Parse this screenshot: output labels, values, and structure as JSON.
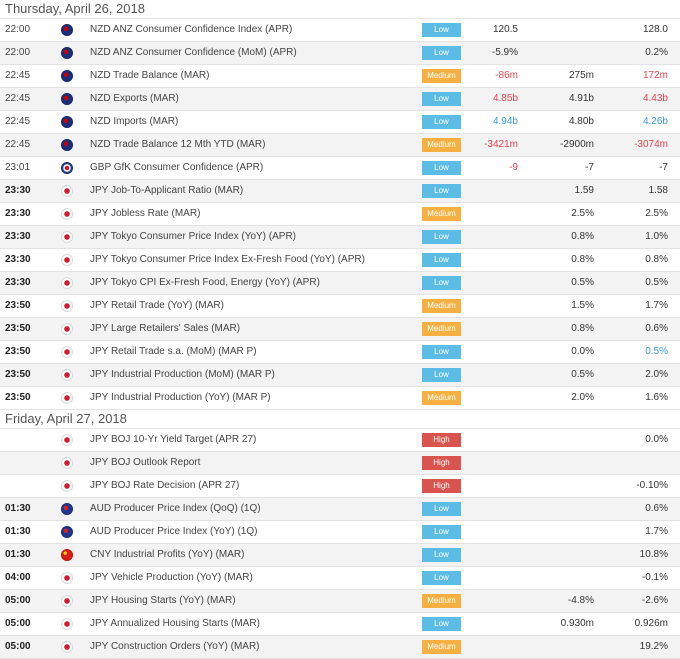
{
  "days": [
    {
      "label": "Thursday, April 26, 2018",
      "events": [
        {
          "time": "22:00",
          "flag": "nz",
          "event": "NZD ANZ Consumer Confidence Index (APR)",
          "importance": "Low",
          "actual": "120.5",
          "forecast": "",
          "previous": "128.0",
          "actual_color": "",
          "previous_color": ""
        },
        {
          "time": "22:00",
          "flag": "nz",
          "event": "NZD ANZ Consumer Confidence (MoM) (APR)",
          "importance": "Low",
          "actual": "-5.9%",
          "forecast": "",
          "previous": "0.2%",
          "actual_color": "",
          "previous_color": ""
        },
        {
          "time": "22:45",
          "flag": "nz",
          "event": "NZD Trade Balance (MAR)",
          "importance": "Medium",
          "actual": "-86m",
          "forecast": "275m",
          "previous": "172m",
          "actual_color": "red",
          "previous_color": "red"
        },
        {
          "time": "22:45",
          "flag": "nz",
          "event": "NZD Exports (MAR)",
          "importance": "Low",
          "actual": "4.85b",
          "forecast": "4.91b",
          "previous": "4.43b",
          "actual_color": "red",
          "previous_color": "red"
        },
        {
          "time": "22:45",
          "flag": "nz",
          "event": "NZD Imports (MAR)",
          "importance": "Low",
          "actual": "4.94b",
          "forecast": "4.80b",
          "previous": "4.26b",
          "actual_color": "blue",
          "previous_color": "blue"
        },
        {
          "time": "22:45",
          "flag": "nz",
          "event": "NZD Trade Balance 12 Mth YTD (MAR)",
          "importance": "Medium",
          "actual": "-3421m",
          "forecast": "-2900m",
          "previous": "-3074m",
          "actual_color": "red",
          "previous_color": "red"
        },
        {
          "time": "23:01",
          "flag": "gb",
          "event": "GBP GfK Consumer Confidence (APR)",
          "importance": "Low",
          "actual": "-9",
          "forecast": "-7",
          "previous": "-7",
          "actual_color": "red",
          "previous_color": ""
        },
        {
          "time": "23:30",
          "flag": "jp",
          "event": "JPY Job-To-Applicant Ratio (MAR)",
          "importance": "Low",
          "actual": "",
          "forecast": "1.59",
          "previous": "1.58",
          "actual_color": "",
          "previous_color": ""
        },
        {
          "time": "23:30",
          "flag": "jp",
          "event": "JPY Jobless Rate (MAR)",
          "importance": "Medium",
          "actual": "",
          "forecast": "2.5%",
          "previous": "2.5%",
          "actual_color": "",
          "previous_color": ""
        },
        {
          "time": "23:30",
          "flag": "jp",
          "event": "JPY Tokyo Consumer Price Index (YoY) (APR)",
          "importance": "Low",
          "actual": "",
          "forecast": "0.8%",
          "previous": "1.0%",
          "actual_color": "",
          "previous_color": ""
        },
        {
          "time": "23:30",
          "flag": "jp",
          "event": "JPY Tokyo Consumer Price Index Ex-Fresh Food (YoY) (APR)",
          "importance": "Low",
          "actual": "",
          "forecast": "0.8%",
          "previous": "0.8%",
          "actual_color": "",
          "previous_color": ""
        },
        {
          "time": "23:30",
          "flag": "jp",
          "event": "JPY Tokyo CPI Ex-Fresh Food, Energy (YoY) (APR)",
          "importance": "Low",
          "actual": "",
          "forecast": "0.5%",
          "previous": "0.5%",
          "actual_color": "",
          "previous_color": ""
        },
        {
          "time": "23:50",
          "flag": "jp",
          "event": "JPY Retail Trade (YoY) (MAR)",
          "importance": "Medium",
          "actual": "",
          "forecast": "1.5%",
          "previous": "1.7%",
          "actual_color": "",
          "previous_color": ""
        },
        {
          "time": "23:50",
          "flag": "jp",
          "event": "JPY Large Retailers' Sales (MAR)",
          "importance": "Medium",
          "actual": "",
          "forecast": "0.8%",
          "previous": "0.6%",
          "actual_color": "",
          "previous_color": ""
        },
        {
          "time": "23:50",
          "flag": "jp",
          "event": "JPY Retail Trade s.a. (MoM) (MAR P)",
          "importance": "Low",
          "actual": "",
          "forecast": "0.0%",
          "previous": "0.5%",
          "actual_color": "",
          "previous_color": "blue"
        },
        {
          "time": "23:50",
          "flag": "jp",
          "event": "JPY Industrial Production (MoM) (MAR P)",
          "importance": "Low",
          "actual": "",
          "forecast": "0.5%",
          "previous": "2.0%",
          "actual_color": "",
          "previous_color": ""
        },
        {
          "time": "23:50",
          "flag": "jp",
          "event": "JPY Industrial Production (YoY) (MAR P)",
          "importance": "Medium",
          "actual": "",
          "forecast": "2.0%",
          "previous": "1.6%",
          "actual_color": "",
          "previous_color": ""
        }
      ]
    },
    {
      "label": "Friday, April 27, 2018",
      "events": [
        {
          "time": "",
          "flag": "jp",
          "event": "JPY BOJ 10-Yr Yield Target (APR 27)",
          "importance": "High",
          "actual": "",
          "forecast": "",
          "previous": "0.0%",
          "actual_color": "",
          "previous_color": ""
        },
        {
          "time": "",
          "flag": "jp",
          "event": "JPY BOJ Outlook Report",
          "importance": "High",
          "actual": "",
          "forecast": "",
          "previous": "",
          "actual_color": "",
          "previous_color": ""
        },
        {
          "time": "",
          "flag": "jp",
          "event": "JPY BOJ Rate Decision (APR 27)",
          "importance": "High",
          "actual": "",
          "forecast": "",
          "previous": "-0.10%",
          "actual_color": "",
          "previous_color": ""
        },
        {
          "time": "01:30",
          "flag": "au",
          "event": "AUD Producer Price Index (QoQ) (1Q)",
          "importance": "Low",
          "actual": "",
          "forecast": "",
          "previous": "0.6%",
          "actual_color": "",
          "previous_color": ""
        },
        {
          "time": "01:30",
          "flag": "au",
          "event": "AUD Producer Price Index (YoY) (1Q)",
          "importance": "Low",
          "actual": "",
          "forecast": "",
          "previous": "1.7%",
          "actual_color": "",
          "previous_color": ""
        },
        {
          "time": "01:30",
          "flag": "cn",
          "event": "CNY Industrial Profits (YoY) (MAR)",
          "importance": "Low",
          "actual": "",
          "forecast": "",
          "previous": "10.8%",
          "actual_color": "",
          "previous_color": ""
        },
        {
          "time": "04:00",
          "flag": "jp",
          "event": "JPY Vehicle Production (YoY) (MAR)",
          "importance": "Low",
          "actual": "",
          "forecast": "",
          "previous": "-0.1%",
          "actual_color": "",
          "previous_color": ""
        },
        {
          "time": "05:00",
          "flag": "jp",
          "event": "JPY Housing Starts (YoY) (MAR)",
          "importance": "Medium",
          "actual": "",
          "forecast": "-4.8%",
          "previous": "-2.6%",
          "actual_color": "",
          "previous_color": ""
        },
        {
          "time": "05:00",
          "flag": "jp",
          "event": "JPY Annualized Housing Starts (MAR)",
          "importance": "Low",
          "actual": "",
          "forecast": "0.930m",
          "previous": "0.926m",
          "actual_color": "",
          "previous_color": ""
        },
        {
          "time": "05:00",
          "flag": "jp",
          "event": "JPY Construction Orders (YoY) (MAR)",
          "importance": "Medium",
          "actual": "",
          "forecast": "",
          "previous": "19.2%",
          "actual_color": "",
          "previous_color": ""
        }
      ]
    }
  ]
}
